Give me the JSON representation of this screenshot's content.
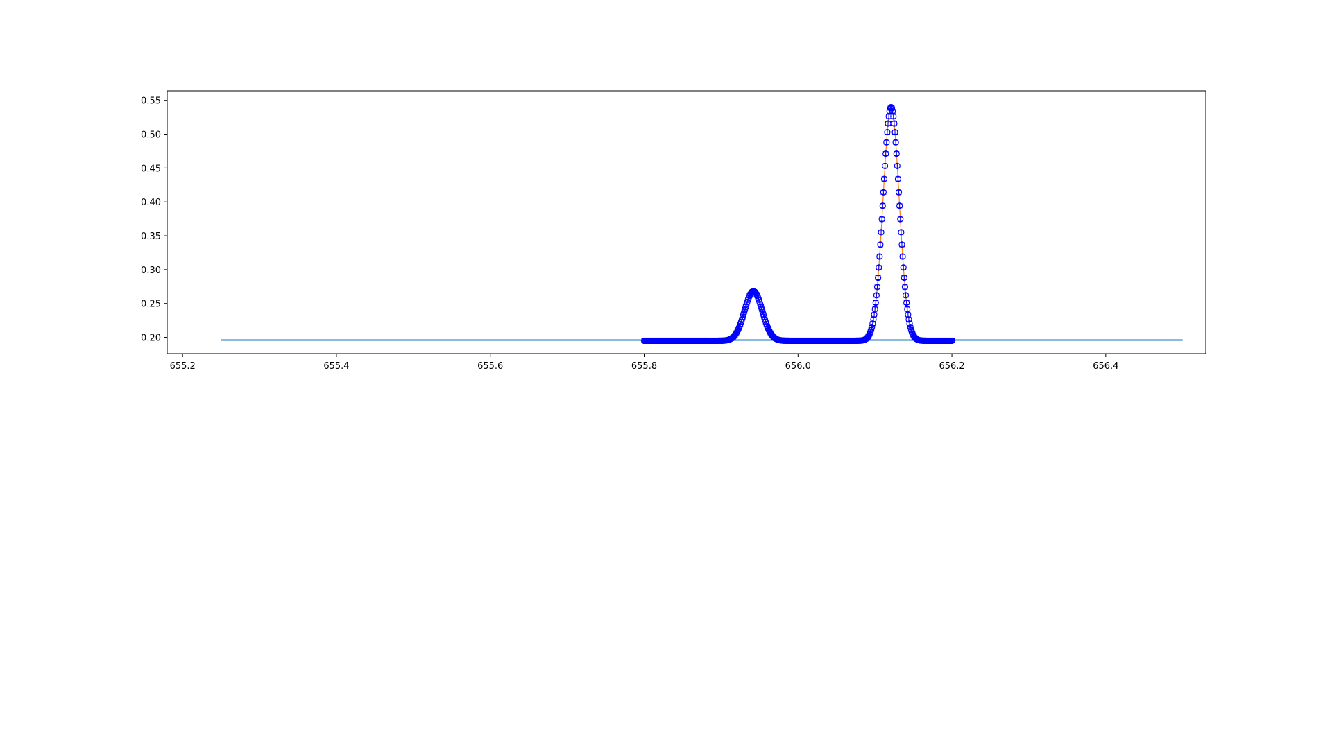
{
  "chart_data": {
    "type": "scatter",
    "title": "",
    "xlabel": "",
    "ylabel": "",
    "xlim": [
      655.18,
      656.53
    ],
    "ylim": [
      0.176,
      0.564
    ],
    "x_ticks": [
      "655.2",
      "655.4",
      "655.6",
      "655.8",
      "656.0",
      "656.2",
      "656.4"
    ],
    "y_ticks": [
      "0.20",
      "0.25",
      "0.30",
      "0.35",
      "0.40",
      "0.45",
      "0.50",
      "0.55"
    ],
    "grid": false,
    "legend": "none",
    "series": [
      {
        "kind": "line",
        "color": "#1f77b4",
        "x": [
          655.25,
          656.5
        ],
        "y": [
          0.196,
          0.196
        ]
      },
      {
        "kind": "fit-line",
        "color": "#ff7f0e",
        "x_range": [
          655.8,
          656.2
        ],
        "baseline": 0.195,
        "peaks": [
          {
            "center": 655.942,
            "amplitude": 0.073,
            "sigma": 0.0115
          },
          {
            "center": 656.121,
            "amplitude": 0.345,
            "sigma": 0.0105
          }
        ]
      },
      {
        "kind": "errorbar-points",
        "color": "#0000ff",
        "marker": "circle-open",
        "x_range": [
          655.8,
          656.2
        ],
        "baseline": 0.195,
        "yerr": 0.003,
        "peaks": [
          {
            "center": 655.942,
            "amplitude": 0.073,
            "sigma": 0.0115
          },
          {
            "center": 656.121,
            "amplitude": 0.345,
            "sigma": 0.0105
          }
        ]
      }
    ]
  }
}
